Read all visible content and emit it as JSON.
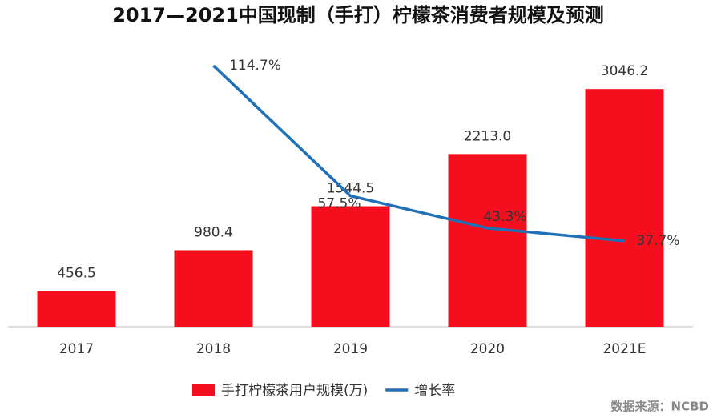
{
  "chart_data": {
    "type": "bar-line",
    "title": "2017—2021中国现制（手打）柠檬茶消费者规模及预测",
    "categories": [
      "2017",
      "2018",
      "2019",
      "2020",
      "2021E"
    ],
    "series": [
      {
        "name": "手打柠檬茶用户规模(万)",
        "type": "bar",
        "color": "#f50f1e",
        "values": [
          456.5,
          980.4,
          1544.5,
          2213.0,
          3046.2
        ],
        "value_labels": [
          "456.5",
          "980.4",
          "1544.5",
          "2213.0",
          "3046.2"
        ]
      },
      {
        "name": "增长率",
        "type": "line",
        "axis": "y2",
        "color": "#1f70b8",
        "values": [
          null,
          114.7,
          57.5,
          43.3,
          37.7
        ],
        "value_labels": [
          null,
          "114.7%",
          "57.5%",
          "43.3%",
          "37.7%"
        ]
      }
    ],
    "ylim": [
      0,
      3500
    ],
    "y2lim": [
      0,
      120
    ],
    "source": "数据来源：NCBD"
  }
}
